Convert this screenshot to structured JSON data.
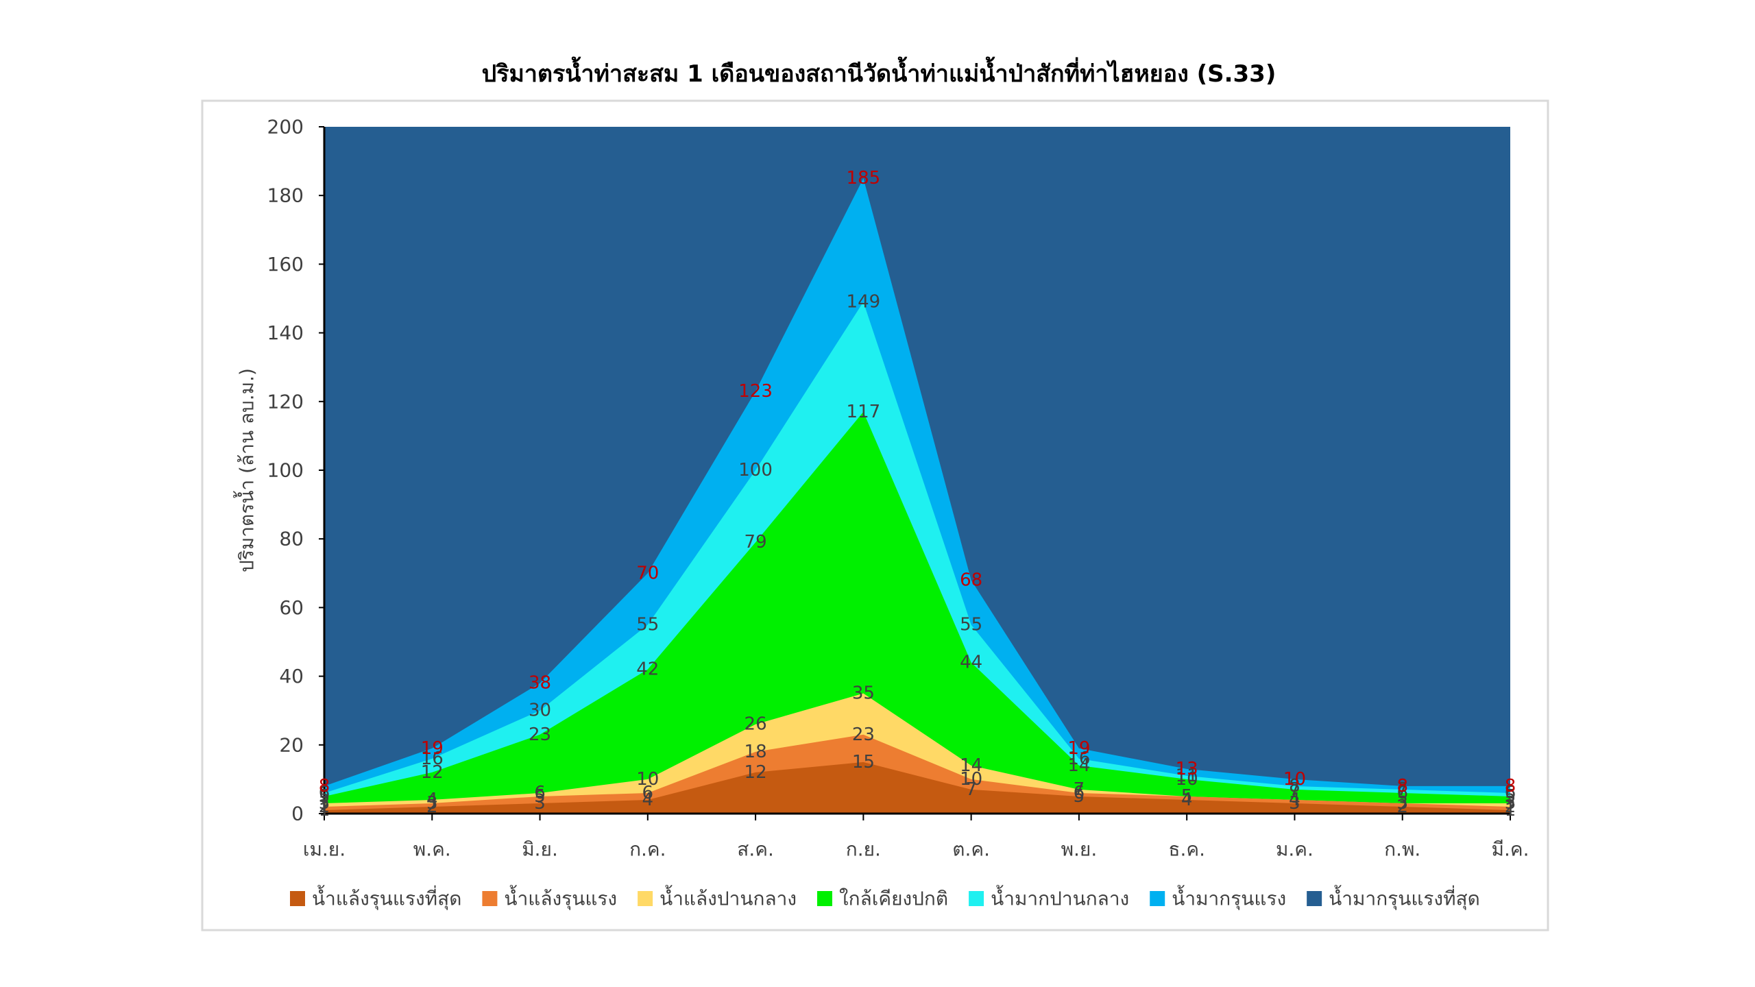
{
  "chart_data": {
    "type": "area",
    "title": "ปริมาตรน้ำท่าสะสม 1 เดือนของสถานีวัดน้ำท่าแม่น้ำป่าสักที่ท่าไฮหยอง (S.33)",
    "y_label": "ปริมาตรน้ำ (ล้าน ลบ.ม.)",
    "categories": [
      "เม.ย.",
      "พ.ค.",
      "มิ.ย.",
      "ก.ค.",
      "ส.ค.",
      "ก.ย.",
      "ต.ค.",
      "พ.ย.",
      "ธ.ค.",
      "ม.ค.",
      "ก.พ.",
      "มี.ค."
    ],
    "ylim": [
      0,
      200
    ],
    "yticks": [
      0,
      20,
      40,
      60,
      80,
      100,
      120,
      140,
      160,
      180,
      200
    ],
    "legend": "bottom",
    "series": [
      {
        "name": "น้ำแล้งรุนแรงที่สุด",
        "color": "#c55a11",
        "label_color": "#404040",
        "values": [
          1,
          2,
          3,
          4,
          12,
          15,
          7,
          5,
          4,
          3,
          2,
          1
        ]
      },
      {
        "name": "น้ำแล้งรุนแรง",
        "color": "#ed7d31",
        "label_color": "#404040",
        "values": [
          2,
          3,
          5,
          6,
          18,
          23,
          10,
          6,
          5,
          4,
          3,
          2
        ]
      },
      {
        "name": "น้ำแล้งปานกลาง",
        "color": "#ffd966",
        "label_color": "#404040",
        "values": [
          3,
          4,
          6,
          10,
          26,
          35,
          14,
          7,
          5,
          4,
          3,
          3
        ]
      },
      {
        "name": "ใกล้เคียงปกติ",
        "color": "#00f000",
        "label_color": "#404040",
        "values": [
          5,
          12,
          23,
          42,
          79,
          117,
          44,
          14,
          10,
          7,
          6,
          5
        ]
      },
      {
        "name": "น้ำมากปานกลาง",
        "color": "#1ff0f0",
        "label_color": "#404040",
        "values": [
          6,
          16,
          30,
          55,
          100,
          149,
          55,
          16,
          11,
          8,
          7,
          6
        ]
      },
      {
        "name": "น้ำมากรุนแรง",
        "color": "#00b0f0",
        "label_color": "#c00000",
        "values": [
          8,
          19,
          38,
          70,
          123,
          185,
          68,
          19,
          13,
          10,
          8,
          8
        ]
      },
      {
        "name": "น้ำมากรุนแรงที่สุด",
        "color": "#255e91"
      }
    ]
  }
}
